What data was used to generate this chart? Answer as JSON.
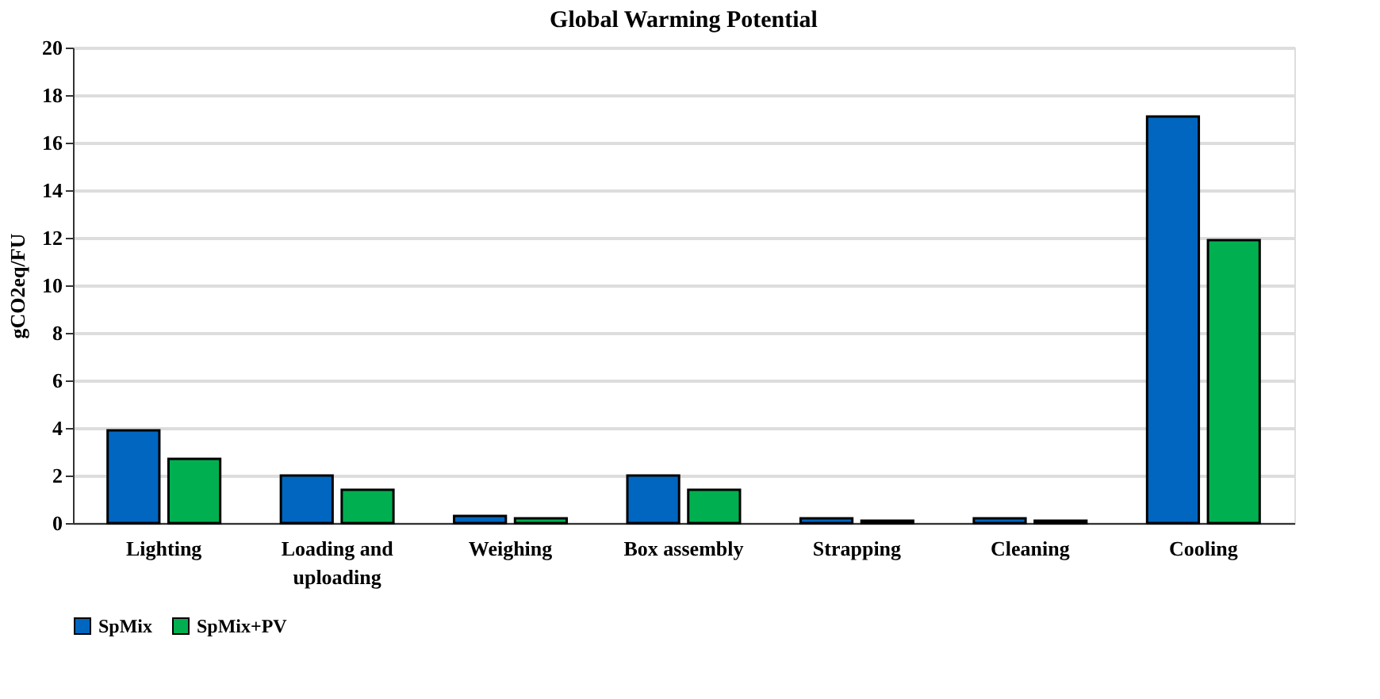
{
  "chart_data": {
    "type": "bar",
    "title": "Global Warming Potential",
    "ylabel": "gCO2eq/FU",
    "categories": [
      "Lighting",
      "Loading and uploading",
      "Weighing",
      "Box assembly",
      "Strapping",
      "Cleaning",
      "Cooling"
    ],
    "series": [
      {
        "name": "SpMix",
        "color": "#0066c0",
        "values": [
          3.9,
          2.0,
          0.3,
          2.0,
          0.2,
          0.2,
          17.1
        ]
      },
      {
        "name": "SpMix+PV",
        "color": "#00b050",
        "values": [
          2.7,
          1.4,
          0.2,
          1.4,
          0.1,
          0.1,
          11.9
        ]
      }
    ],
    "ylim": [
      0,
      20
    ],
    "yticks": [
      0,
      2,
      4,
      6,
      8,
      10,
      12,
      14,
      16,
      18,
      20
    ],
    "grid": "y",
    "legend": "bottom"
  }
}
